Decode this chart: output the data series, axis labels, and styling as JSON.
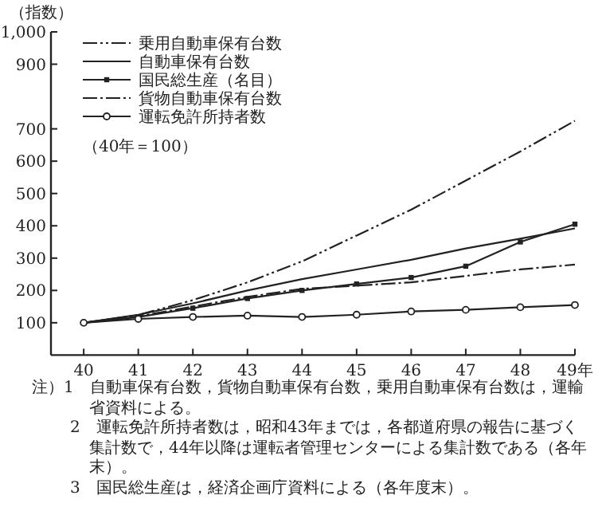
{
  "chart_data": {
    "type": "line",
    "ylabel": "（指数）",
    "x": [
      40,
      41,
      42,
      43,
      44,
      45,
      46,
      47,
      48,
      49
    ],
    "xlim": [
      39.4,
      49
    ],
    "xticks": [
      40,
      41,
      42,
      43,
      44,
      45,
      46,
      47,
      48,
      {
        "value": 49,
        "label": "49年"
      }
    ],
    "ylim": [
      0,
      1000
    ],
    "yticks": [
      100,
      200,
      300,
      400,
      500,
      600,
      700,
      900,
      {
        "value": 1000,
        "label": "1,000"
      }
    ],
    "legend": "top left",
    "grid": false,
    "series": [
      {
        "name": "乗用自動車保有台数",
        "color": "#222222",
        "line_style": "dashed",
        "marker": "none",
        "values": [
          100,
          124,
          170,
          225,
          290,
          370,
          450,
          540,
          630,
          725
        ]
      },
      {
        "name": "自動車保有台数",
        "color": "#222222",
        "line_style": "solid",
        "marker": "none",
        "values": [
          100,
          125,
          160,
          200,
          235,
          265,
          295,
          330,
          360,
          392
        ]
      },
      {
        "name": "国民総生産（名目）",
        "color": "#222222",
        "line_style": "solid",
        "marker": "square",
        "values": [
          100,
          118,
          145,
          175,
          200,
          220,
          240,
          275,
          350,
          405
        ]
      },
      {
        "name": "貨物自動車保有台数",
        "color": "#222222",
        "line_style": "dotted",
        "marker": "none",
        "values": [
          100,
          120,
          150,
          180,
          205,
          215,
          225,
          245,
          265,
          280
        ]
      },
      {
        "name": "運転免許所持者数",
        "color": "#222222",
        "line_style": "solid",
        "marker": "circle",
        "values": [
          100,
          112,
          118,
          122,
          118,
          125,
          135,
          140,
          148,
          155
        ]
      }
    ],
    "annotations": [
      "（40年＝100）",
      "注）1　自動車保有台数，貨物自動車保有台数，乗用自動車保有台数は，運輸省資料による。",
      "2　運転免許所持者数は，昭和43年までは，各都道府県の報告に基づく集計数で，44年以降は運転者管理センターによる集計数である（各年末）。",
      "3　国民総生産は，経済企画庁資料による（各年度末）。"
    ]
  }
}
